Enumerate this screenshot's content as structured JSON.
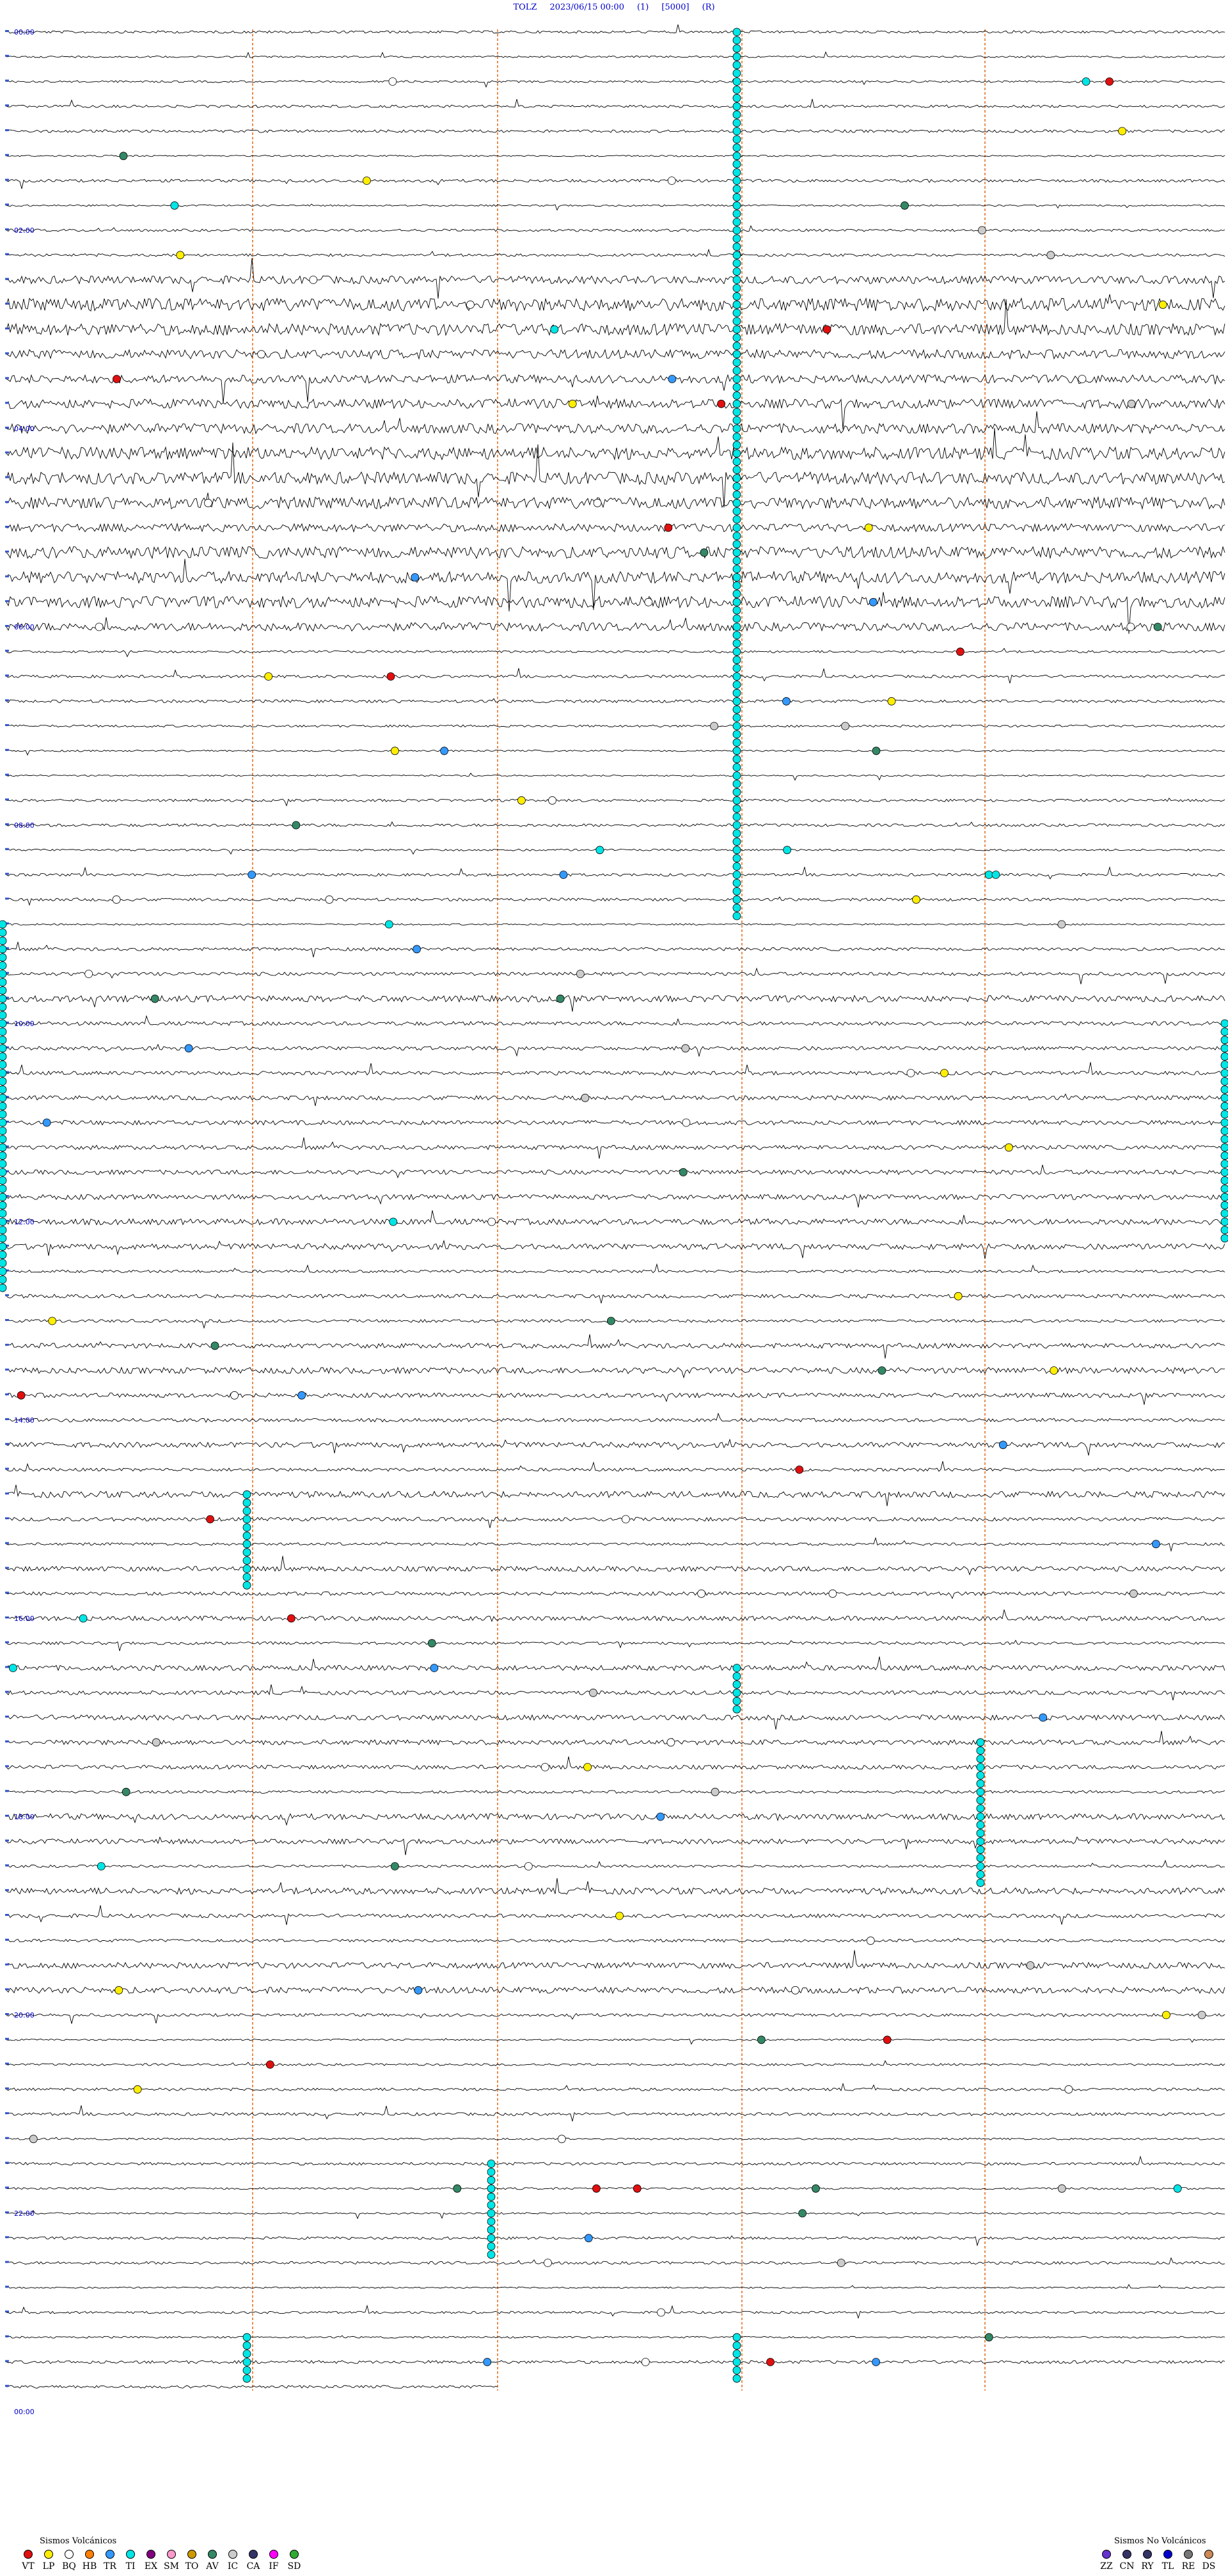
{
  "header": {
    "station": "TOLZ",
    "datetime": "2023/06/15 00:00",
    "gain": "(1)",
    "scale": "[5000]",
    "mode": "(R)"
  },
  "helicorder": {
    "rows": 96,
    "minutes_per_row": 15,
    "hour_labels": [
      "00:00",
      "02:00",
      "04:00",
      "06:00",
      "08:00",
      "10:00",
      "12:00",
      "14:00",
      "16:00",
      "18:00",
      "20:00",
      "22:00",
      "00:00"
    ],
    "line_color": "#000000",
    "marker_line_color": "#e06a1a",
    "label_color": "#0000cc"
  },
  "legend_volcanic": {
    "title": "Sismos Volcánicos",
    "items": [
      {
        "code": "VT",
        "color": "#e01010"
      },
      {
        "code": "LP",
        "color": "#ffee00"
      },
      {
        "code": "BQ",
        "color": "#ffffff"
      },
      {
        "code": "HB",
        "color": "#ff7f00"
      },
      {
        "code": "TR",
        "color": "#3399ff"
      },
      {
        "code": "TI",
        "color": "#00e5e5"
      },
      {
        "code": "EX",
        "color": "#800080"
      },
      {
        "code": "SM",
        "color": "#ff99cc"
      },
      {
        "code": "TO",
        "color": "#cc9900"
      },
      {
        "code": "AV",
        "color": "#338866"
      },
      {
        "code": "IC",
        "color": "#cccccc"
      },
      {
        "code": "CA",
        "color": "#333366"
      },
      {
        "code": "IF",
        "color": "#ff00ff"
      },
      {
        "code": "SD",
        "color": "#33aa33"
      }
    ]
  },
  "legend_nonvolcanic": {
    "title": "Sismos No Volcánicos",
    "items": [
      {
        "code": "ZZ",
        "color": "#6633cc"
      },
      {
        "code": "CN",
        "color": "#333366"
      },
      {
        "code": "RY",
        "color": "#333366"
      },
      {
        "code": "TL",
        "color": "#0000cc"
      },
      {
        "code": "RE",
        "color": "#777777"
      },
      {
        "code": "DS",
        "color": "#cc8855"
      }
    ]
  }
}
